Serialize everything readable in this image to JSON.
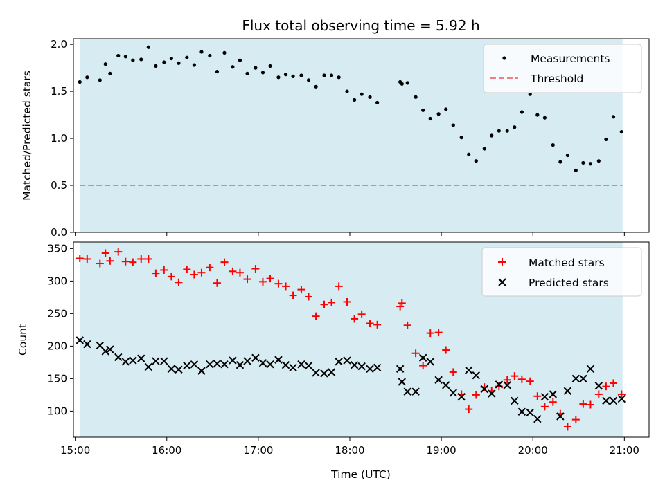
{
  "title": "Flux total observing time = 5.92 h",
  "xlabel": "Time (UTC)",
  "x_ticks": [
    "15:00",
    "16:00",
    "17:00",
    "18:00",
    "19:00",
    "20:00",
    "21:00"
  ],
  "colors": {
    "shade": "#add8e6",
    "measurement": "#000000",
    "threshold": "#f08080",
    "matched": "#ff0000",
    "predicted": "#000000"
  },
  "chart_data": [
    {
      "type": "scatter",
      "ylabel": "Matched/Predicted stars",
      "xlim": [
        14.98,
        21.27
      ],
      "ylim": [
        0,
        2.06
      ],
      "yticks": [
        "0.0",
        "0.5",
        "1.0",
        "1.5",
        "2.0"
      ],
      "shaded_span": [
        15.05,
        20.98
      ],
      "legend_position": "upper right",
      "threshold": 0.5,
      "series": [
        {
          "name": "Measurements",
          "marker": "dot",
          "x": [
            15.05,
            15.13,
            15.27,
            15.33,
            15.38,
            15.47,
            15.55,
            15.63,
            15.72,
            15.8,
            15.88,
            15.97,
            16.05,
            16.13,
            16.22,
            16.3,
            16.38,
            16.47,
            16.55,
            16.63,
            16.72,
            16.8,
            16.88,
            16.97,
            17.05,
            17.13,
            17.22,
            17.3,
            17.38,
            17.47,
            17.55,
            17.63,
            17.72,
            17.8,
            17.88,
            17.97,
            18.05,
            18.13,
            18.22,
            18.3,
            18.55,
            18.57,
            18.63,
            18.72,
            18.8,
            18.88,
            18.97,
            19.05,
            19.13,
            19.22,
            19.3,
            19.38,
            19.47,
            19.55,
            19.63,
            19.72,
            19.8,
            19.88,
            19.97,
            20.05,
            20.13,
            20.22,
            20.3,
            20.38,
            20.47,
            20.55,
            20.63,
            20.72,
            20.8,
            20.88,
            20.97
          ],
          "y": [
            1.6,
            1.65,
            1.62,
            1.79,
            1.69,
            1.88,
            1.87,
            1.83,
            1.84,
            1.97,
            1.77,
            1.81,
            1.85,
            1.8,
            1.86,
            1.78,
            1.92,
            1.88,
            1.71,
            1.91,
            1.76,
            1.83,
            1.69,
            1.75,
            1.7,
            1.77,
            1.65,
            1.68,
            1.66,
            1.67,
            1.62,
            1.55,
            1.67,
            1.67,
            1.65,
            1.5,
            1.41,
            1.47,
            1.44,
            1.38,
            1.6,
            1.58,
            1.59,
            1.44,
            1.3,
            1.21,
            1.26,
            1.31,
            1.14,
            1.01,
            0.83,
            0.76,
            0.89,
            1.03,
            1.08,
            1.08,
            1.12,
            1.28,
            1.47,
            1.25,
            1.22,
            0.93,
            0.75,
            0.82,
            0.66,
            0.74,
            0.73,
            0.76,
            0.99,
            1.23,
            1.07
          ]
        },
        {
          "name": "Threshold",
          "marker": "dashed-line",
          "x": [
            15.05,
            20.98
          ],
          "y": [
            0.5,
            0.5
          ]
        }
      ]
    },
    {
      "type": "scatter",
      "ylabel": "Count",
      "xlim": [
        14.98,
        21.27
      ],
      "ylim": [
        60,
        360
      ],
      "yticks": [
        "100",
        "150",
        "200",
        "250",
        "300",
        "350"
      ],
      "shaded_span": [
        15.05,
        20.98
      ],
      "legend_position": "upper right",
      "series": [
        {
          "name": "Matched stars",
          "marker": "plus",
          "x": [
            15.05,
            15.13,
            15.27,
            15.33,
            15.38,
            15.47,
            15.55,
            15.63,
            15.72,
            15.8,
            15.88,
            15.97,
            16.05,
            16.13,
            16.22,
            16.3,
            16.38,
            16.47,
            16.55,
            16.63,
            16.72,
            16.8,
            16.88,
            16.97,
            17.05,
            17.13,
            17.22,
            17.3,
            17.38,
            17.47,
            17.55,
            17.63,
            17.72,
            17.8,
            17.88,
            17.97,
            18.05,
            18.13,
            18.22,
            18.3,
            18.55,
            18.57,
            18.63,
            18.72,
            18.8,
            18.88,
            18.97,
            19.05,
            19.13,
            19.22,
            19.3,
            19.38,
            19.47,
            19.55,
            19.63,
            19.72,
            19.8,
            19.88,
            19.97,
            20.05,
            20.13,
            20.22,
            20.3,
            20.38,
            20.47,
            20.55,
            20.63,
            20.72,
            20.8,
            20.88,
            20.97
          ],
          "y": [
            335,
            334,
            327,
            343,
            331,
            345,
            330,
            329,
            334,
            334,
            312,
            317,
            307,
            298,
            318,
            310,
            313,
            321,
            297,
            329,
            315,
            313,
            303,
            319,
            299,
            304,
            296,
            292,
            278,
            287,
            276,
            246,
            264,
            267,
            292,
            268,
            242,
            249,
            235,
            233,
            261,
            266,
            232,
            189,
            170,
            220,
            221,
            194,
            160,
            126,
            103,
            125,
            137,
            131,
            138,
            148,
            154,
            149,
            146,
            123,
            107,
            114,
            96,
            76,
            87,
            111,
            110,
            126,
            138,
            143,
            126
          ]
        },
        {
          "name": "Predicted stars",
          "marker": "x",
          "x": [
            15.05,
            15.13,
            15.27,
            15.33,
            15.38,
            15.47,
            15.55,
            15.63,
            15.72,
            15.8,
            15.88,
            15.97,
            16.05,
            16.13,
            16.22,
            16.3,
            16.38,
            16.47,
            16.55,
            16.63,
            16.72,
            16.8,
            16.88,
            16.97,
            17.05,
            17.13,
            17.22,
            17.3,
            17.38,
            17.47,
            17.55,
            17.63,
            17.72,
            17.8,
            17.88,
            17.97,
            18.05,
            18.13,
            18.22,
            18.3,
            18.55,
            18.57,
            18.63,
            18.72,
            18.8,
            18.88,
            18.97,
            19.05,
            19.13,
            19.22,
            19.3,
            19.38,
            19.47,
            19.55,
            19.63,
            19.72,
            19.8,
            19.88,
            19.97,
            20.05,
            20.13,
            20.22,
            20.3,
            20.38,
            20.47,
            20.55,
            20.63,
            20.72,
            20.8,
            20.88,
            20.97
          ],
          "y": [
            209,
            203,
            201,
            192,
            195,
            183,
            176,
            178,
            181,
            168,
            177,
            177,
            165,
            164,
            170,
            172,
            162,
            172,
            173,
            172,
            178,
            171,
            177,
            182,
            174,
            172,
            179,
            171,
            167,
            172,
            170,
            159,
            158,
            160,
            176,
            178,
            171,
            169,
            165,
            167,
            165,
            145,
            130,
            130,
            182,
            176,
            148,
            140,
            128,
            122,
            163,
            155,
            134,
            127,
            141,
            140,
            116,
            99,
            98,
            88,
            122,
            126,
            92,
            131,
            150,
            150,
            165,
            139,
            116,
            116,
            119
          ]
        }
      ]
    }
  ]
}
